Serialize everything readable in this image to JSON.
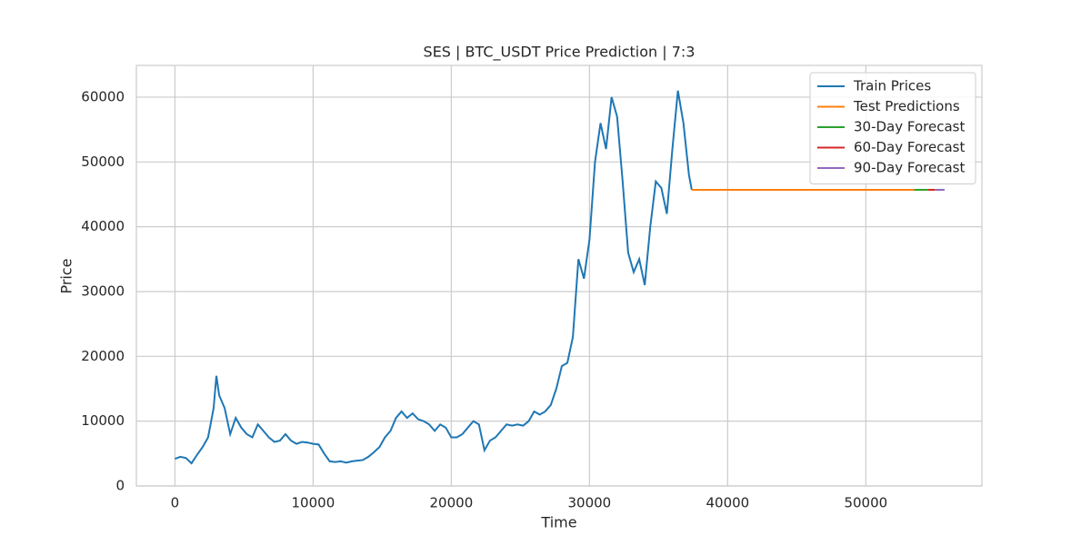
{
  "chart_data": {
    "type": "line",
    "title": "SES | BTC_USDT Price Prediction | 7:3",
    "x_label": "Time",
    "y_label": "Price",
    "xlim": [
      -2790,
      58400
    ],
    "ylim": [
      0,
      64900
    ],
    "xticks": [
      0,
      10000,
      20000,
      30000,
      40000,
      50000
    ],
    "yticks": [
      0,
      10000,
      20000,
      30000,
      40000,
      50000,
      60000
    ],
    "grid": true,
    "legend": "upper right",
    "series": [
      {
        "name": "Train Prices",
        "color": "#1f77b4",
        "x": [
          0,
          400,
          800,
          1200,
          1600,
          2000,
          2400,
          2800,
          3000,
          3200,
          3600,
          4000,
          4400,
          4800,
          5200,
          5600,
          6000,
          6400,
          6800,
          7200,
          7600,
          8000,
          8400,
          8800,
          9200,
          9600,
          10000,
          10400,
          10800,
          11200,
          11600,
          12000,
          12400,
          12800,
          13200,
          13600,
          14000,
          14400,
          14800,
          15200,
          15600,
          16000,
          16400,
          16800,
          17200,
          17600,
          18000,
          18400,
          18800,
          19200,
          19600,
          20000,
          20400,
          20800,
          21200,
          21600,
          22000,
          22400,
          22800,
          23200,
          23600,
          24000,
          24400,
          24800,
          25200,
          25600,
          26000,
          26400,
          26800,
          27200,
          27600,
          28000,
          28400,
          28800,
          29200,
          29600,
          30000,
          30400,
          30800,
          31200,
          31600,
          32000,
          32400,
          32800,
          33200,
          33600,
          34000,
          34400,
          34800,
          35200,
          35600,
          36000,
          36400,
          36800,
          37200,
          37400
        ],
        "values": [
          4200,
          4500,
          4300,
          3500,
          4800,
          6000,
          7500,
          12000,
          17000,
          14000,
          12000,
          8000,
          10500,
          9000,
          8000,
          7500,
          9500,
          8500,
          7500,
          6800,
          7000,
          8000,
          7000,
          6500,
          6800,
          6700,
          6500,
          6400,
          5000,
          3800,
          3700,
          3800,
          3600,
          3800,
          3900,
          4000,
          4500,
          5200,
          6000,
          7500,
          8500,
          10500,
          11500,
          10500,
          11200,
          10300,
          10000,
          9500,
          8500,
          9500,
          9000,
          7500,
          7500,
          8000,
          9000,
          10000,
          9500,
          5500,
          7000,
          7500,
          8500,
          9500,
          9300,
          9500,
          9300,
          10000,
          11500,
          11000,
          11500,
          12500,
          15000,
          18500,
          19000,
          23000,
          35000,
          32000,
          38000,
          50000,
          56000,
          52000,
          60000,
          57000,
          47000,
          36000,
          33000,
          35000,
          31000,
          40000,
          47000,
          46000,
          42000,
          52000,
          61000,
          56000,
          48000,
          45700
        ]
      },
      {
        "name": "Test Predictions",
        "color": "#ff7f0e",
        "x": [
          37400,
          53500
        ],
        "values": [
          45700,
          45700
        ]
      },
      {
        "name": "30-Day Forecast",
        "color": "#2ca02c",
        "x": [
          53500,
          54500
        ],
        "values": [
          45700,
          45700
        ]
      },
      {
        "name": "60-Day Forecast",
        "color": "#d62728",
        "x": [
          54500,
          55000
        ],
        "values": [
          45700,
          45700
        ]
      },
      {
        "name": "90-Day Forecast",
        "color": "#9467bd",
        "x": [
          55000,
          55700
        ],
        "values": [
          45700,
          45700
        ]
      }
    ]
  }
}
